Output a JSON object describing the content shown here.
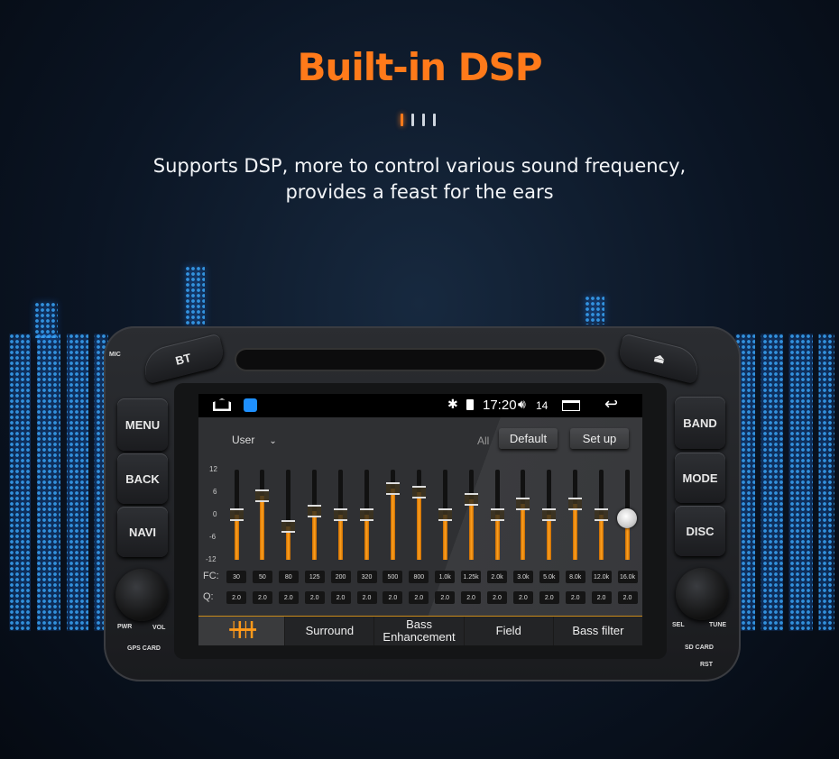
{
  "header": {
    "title": "Built-in DSP",
    "subtitle_line1": "Supports DSP, more to control various sound frequency,",
    "subtitle_line2": "provides a feast for the ears"
  },
  "colors": {
    "accent": "#ff7a1a",
    "slider_fill": "#ffa21f",
    "bars": "#3aa8ff"
  },
  "device": {
    "mic": "MIC",
    "bt": "BT",
    "eject_icon": "eject-icon",
    "left_buttons": [
      "MENU",
      "BACK",
      "NAVI"
    ],
    "right_buttons": [
      "BAND",
      "MODE",
      "DISC"
    ],
    "pwr": "PWR",
    "vol": "VOL",
    "gps_card": "GPS CARD",
    "sel": "SEL",
    "tune": "TUNE",
    "sd_card": "SD CARD",
    "rst": "RST"
  },
  "status": {
    "time": "17:20",
    "volume": "14",
    "icons": [
      "home-icon",
      "app-icon",
      "bluetooth-icon",
      "sim-icon",
      "volume-icon",
      "recent-apps-icon",
      "back-icon"
    ]
  },
  "eq": {
    "preset": "User",
    "all_label": "All",
    "default_label": "Default",
    "setup_label": "Set up",
    "scale": [
      "12",
      "6",
      "0",
      "-6",
      "-12"
    ],
    "fc_label": "FC:",
    "q_label": "Q:",
    "bands": [
      {
        "fc": "30",
        "q": "2.0",
        "gain": 0
      },
      {
        "fc": "50",
        "q": "2.0",
        "gain": 5
      },
      {
        "fc": "80",
        "q": "2.0",
        "gain": -3
      },
      {
        "fc": "125",
        "q": "2.0",
        "gain": 1
      },
      {
        "fc": "200",
        "q": "2.0",
        "gain": 0
      },
      {
        "fc": "320",
        "q": "2.0",
        "gain": 0
      },
      {
        "fc": "500",
        "q": "2.0",
        "gain": 7
      },
      {
        "fc": "800",
        "q": "2.0",
        "gain": 6
      },
      {
        "fc": "1.0k",
        "q": "2.0",
        "gain": 0
      },
      {
        "fc": "1.25k",
        "q": "2.0",
        "gain": 4
      },
      {
        "fc": "2.0k",
        "q": "2.0",
        "gain": 0
      },
      {
        "fc": "3.0k",
        "q": "2.0",
        "gain": 3
      },
      {
        "fc": "5.0k",
        "q": "2.0",
        "gain": 0
      },
      {
        "fc": "8.0k",
        "q": "2.0",
        "gain": 3
      },
      {
        "fc": "12.0k",
        "q": "2.0",
        "gain": 0
      },
      {
        "fc": "16.0k",
        "q": "2.0",
        "gain": -1
      }
    ],
    "gain_range": [
      -12,
      12
    ],
    "active_band": 16
  },
  "tabs": [
    {
      "icon": "equalizer-icon"
    },
    {
      "label": "Surround"
    },
    {
      "label": "Bass Enhancement"
    },
    {
      "label": "Field"
    },
    {
      "label": "Bass filter"
    }
  ]
}
